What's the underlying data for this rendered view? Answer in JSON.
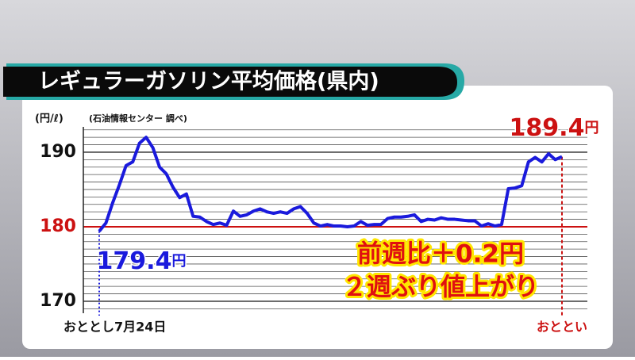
{
  "chart_data": {
    "type": "line",
    "title": "レギュラーガソリン平均価格(県内)",
    "y_label": "(円/ℓ)",
    "source": "(石油情報センター 調べ)",
    "categories": [
      "おととし7月24日",
      null,
      null,
      null,
      null,
      null,
      null,
      null,
      null,
      null,
      null,
      null,
      null,
      null,
      null,
      null,
      null,
      null,
      null,
      null,
      null,
      null,
      null,
      null,
      null,
      null,
      null,
      null,
      null,
      null,
      null,
      null,
      null,
      null,
      null,
      null,
      null,
      null,
      null,
      null,
      null,
      null,
      null,
      null,
      null,
      null,
      null,
      null,
      null,
      null,
      null,
      null,
      null,
      null,
      null,
      null,
      null,
      null,
      null,
      null,
      null,
      null,
      null,
      null,
      null,
      null,
      null,
      null,
      null,
      "おととい"
    ],
    "values": [
      179.4,
      180.5,
      183.2,
      185.6,
      188.2,
      188.7,
      191.2,
      192.0,
      190.6,
      188.0,
      187.1,
      185.3,
      183.9,
      184.4,
      181.4,
      181.3,
      180.7,
      180.3,
      180.5,
      180.2,
      182.1,
      181.4,
      181.6,
      182.1,
      182.4,
      182.0,
      181.8,
      182.0,
      181.8,
      182.4,
      182.7,
      181.8,
      180.5,
      180.1,
      180.3,
      180.1,
      180.1,
      180.0,
      180.1,
      180.7,
      180.2,
      180.3,
      180.3,
      181.1,
      181.3,
      181.3,
      181.4,
      181.6,
      180.7,
      181.0,
      180.9,
      181.2,
      181.0,
      181.0,
      180.9,
      180.8,
      180.8,
      180.1,
      180.4,
      180.1,
      180.3,
      185.1,
      185.2,
      185.5,
      188.7,
      189.3,
      188.7,
      189.8,
      189.0,
      189.4
    ],
    "value_labels": [
      "179.4円",
      null,
      null,
      null,
      null,
      null,
      null,
      null,
      null,
      null,
      null,
      null,
      null,
      null,
      null,
      null,
      null,
      null,
      null,
      null,
      null,
      null,
      null,
      null,
      null,
      null,
      null,
      null,
      null,
      null,
      null,
      null,
      null,
      null,
      null,
      null,
      null,
      null,
      null,
      null,
      null,
      null,
      null,
      null,
      null,
      null,
      null,
      null,
      null,
      null,
      null,
      null,
      null,
      null,
      null,
      null,
      null,
      null,
      null,
      null,
      null,
      null,
      null,
      null,
      null,
      null,
      null,
      null,
      null,
      "189.4円"
    ],
    "color": "#1a1adc",
    "ylim": [
      168.4,
      193.4
    ],
    "yticks": [
      170,
      180,
      190
    ],
    "minor_yticks": [
      169,
      170,
      171,
      172,
      173,
      174,
      175,
      176,
      177,
      178,
      179,
      180,
      181,
      182,
      183,
      184,
      185,
      186,
      187,
      188,
      189,
      190,
      191,
      192,
      193
    ],
    "reference_line": {
      "value": 180,
      "color": "#cc1111"
    },
    "annotation": [
      "前週比＋0.2円",
      "２週ぶり値上がり"
    ]
  }
}
